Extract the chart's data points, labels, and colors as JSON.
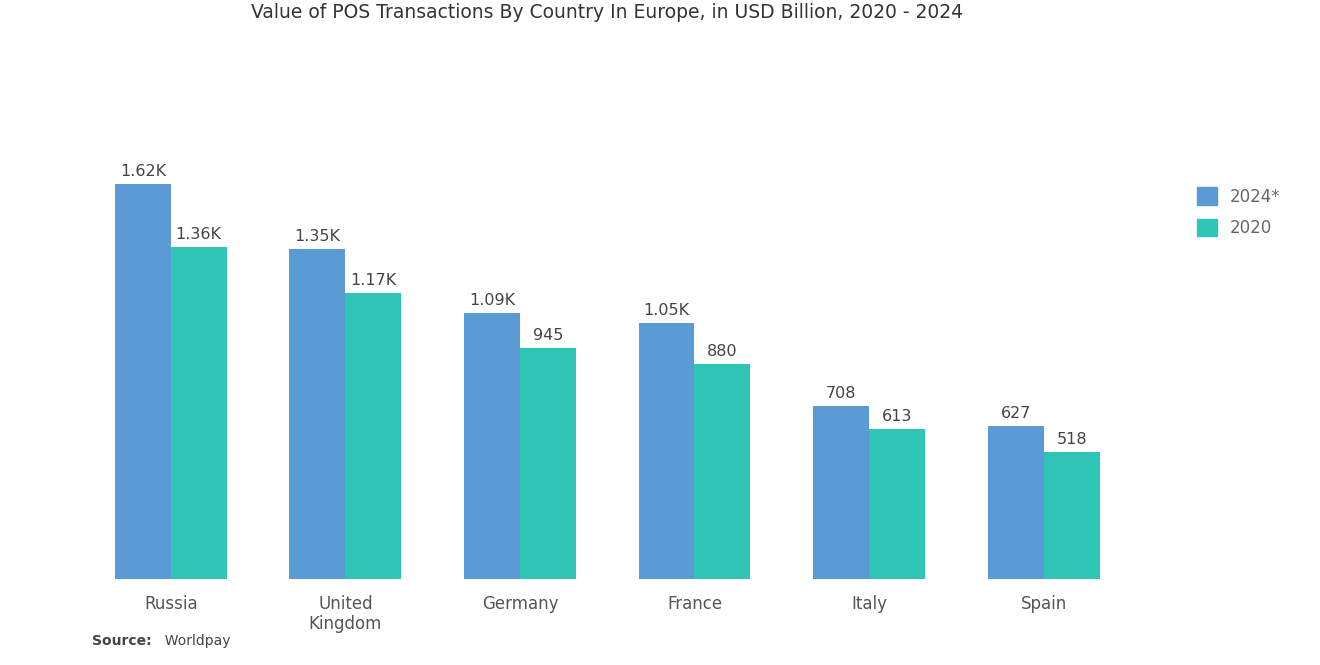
{
  "title": "Value of POS Transactions By Country In Europe, in USD Billion, 2020 - 2024",
  "categories": [
    "Russia",
    "United\nKingdom",
    "Germany",
    "France",
    "Italy",
    "Spain"
  ],
  "values_2024": [
    1620,
    1350,
    1090,
    1050,
    708,
    627
  ],
  "values_2020": [
    1360,
    1170,
    945,
    880,
    613,
    518
  ],
  "labels_2024": [
    "1.62K",
    "1.35K",
    "1.09K",
    "1.05K",
    "708",
    "627"
  ],
  "labels_2020": [
    "1.36K",
    "1.17K",
    "945",
    "880",
    "613",
    "518"
  ],
  "color_2024": "#5B9BD5",
  "color_2020": "#2EC4B6",
  "legend_labels": [
    "2024*",
    "2020"
  ],
  "source_bold": "Source:",
  "source_rest": "  Worldpay",
  "background_color": "#ffffff",
  "title_fontsize": 13.5,
  "label_fontsize": 11.5,
  "tick_fontsize": 12,
  "bar_width": 0.32,
  "ylim": [
    0,
    2100
  ]
}
